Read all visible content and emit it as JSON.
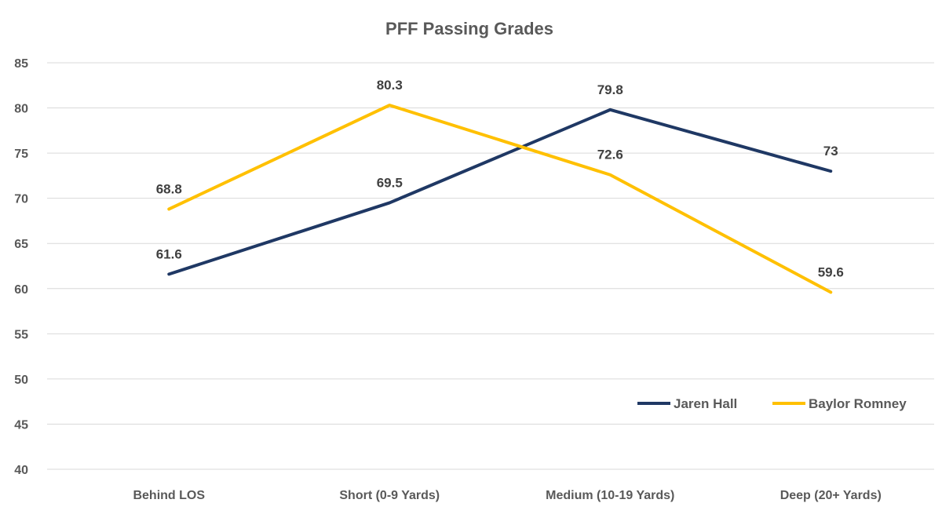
{
  "chart_data": {
    "type": "line",
    "title": "PFF Passing Grades",
    "categories": [
      "Behind LOS",
      "Short (0-9 Yards)",
      "Medium (10-19 Yards)",
      "Deep (20+ Yards)"
    ],
    "series": [
      {
        "name": "Jaren Hall",
        "color": "#1F3864",
        "values": [
          61.6,
          69.5,
          79.8,
          73
        ],
        "labels": [
          "61.6",
          "69.5",
          "79.8",
          "73"
        ]
      },
      {
        "name": "Baylor Romney",
        "color": "#FFC000",
        "values": [
          68.8,
          80.3,
          72.6,
          59.6
        ],
        "labels": [
          "68.8",
          "80.3",
          "72.6",
          "59.6"
        ]
      }
    ],
    "ylim": [
      40,
      85
    ],
    "yticks": [
      "40",
      "45",
      "50",
      "55",
      "60",
      "65",
      "70",
      "75",
      "80",
      "85"
    ],
    "grid": true,
    "legend_position": "bottom-right",
    "xlabel": "",
    "ylabel": ""
  }
}
